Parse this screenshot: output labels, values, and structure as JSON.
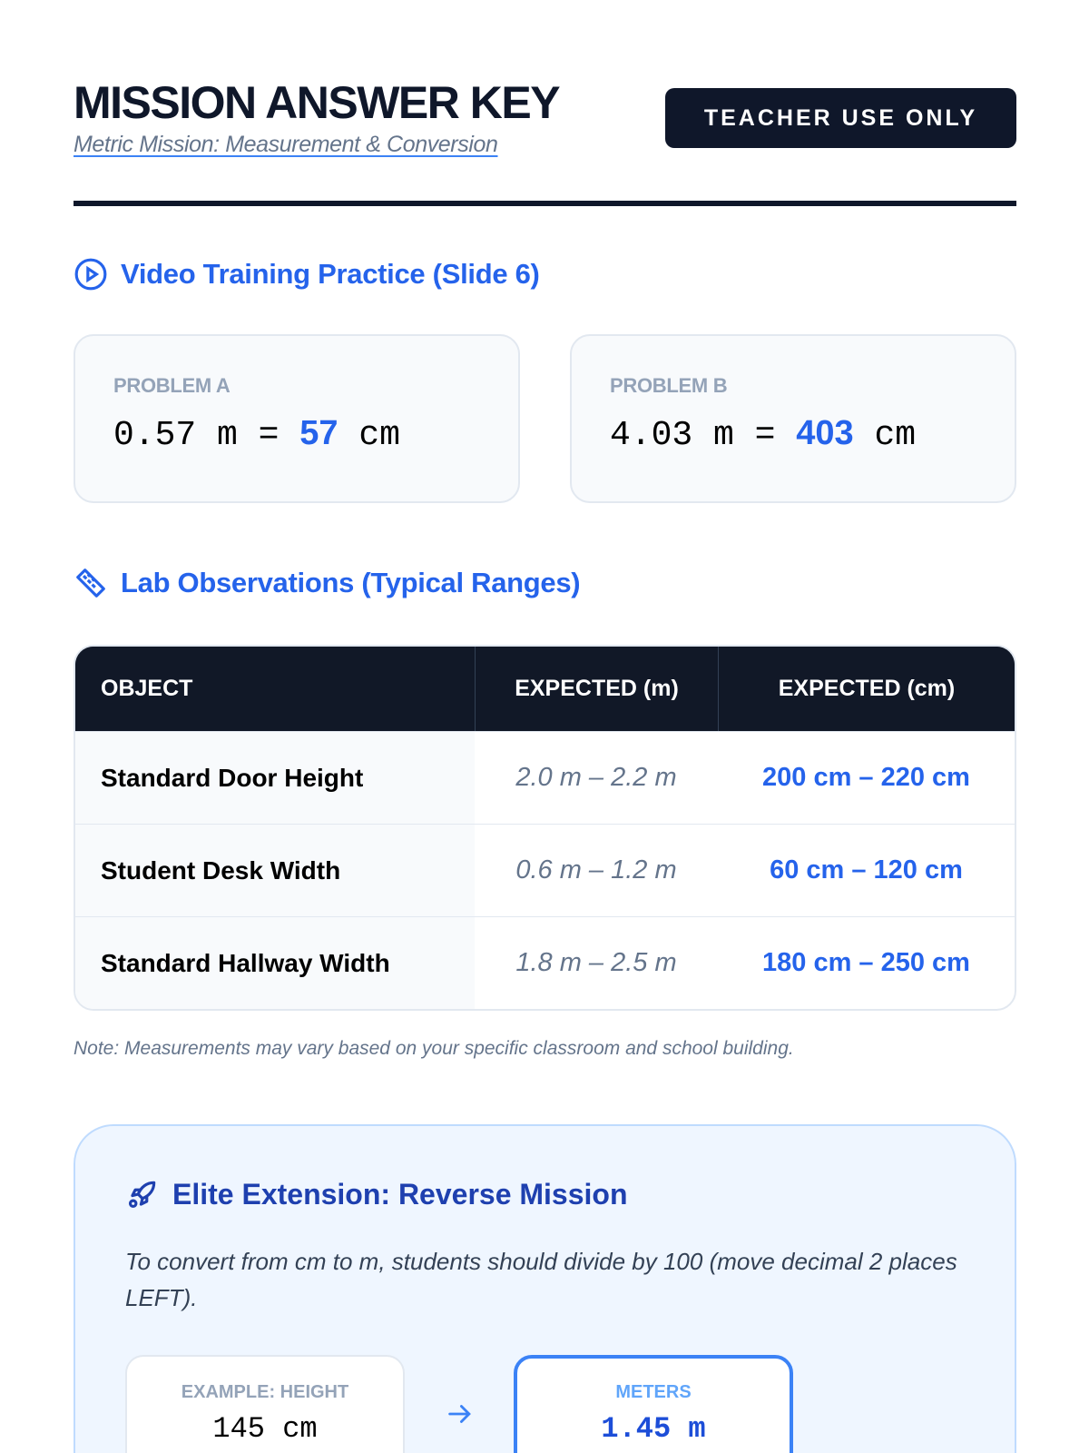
{
  "header": {
    "title": "MISSION ANSWER KEY",
    "subtitle": "Metric Mission: Measurement & Conversion",
    "badge": "TEACHER USE ONLY"
  },
  "colors": {
    "accent": "#2563eb",
    "dark": "#0f172a",
    "extension_bg": "#eff6ff"
  },
  "video": {
    "heading": "Video Training Practice (Slide 6)",
    "icon": "play-circle-icon",
    "problems": [
      {
        "label": "PROBLEM A",
        "given": "0.57 m = ",
        "answer": "57",
        "unit": " cm"
      },
      {
        "label": "PROBLEM B",
        "given": "4.03 m = ",
        "answer": "403",
        "unit": " cm"
      }
    ]
  },
  "lab": {
    "heading": "Lab Observations (Typical Ranges)",
    "icon": "ruler-icon",
    "columns": [
      "OBJECT",
      "EXPECTED (m)",
      "EXPECTED (cm)"
    ],
    "rows": [
      [
        "Standard Door Height",
        "2.0 m – 2.2 m",
        "200 cm – 220 cm"
      ],
      [
        "Student Desk Width",
        "0.6 m – 1.2 m",
        "60 cm – 120 cm"
      ],
      [
        "Standard Hallway Width",
        "1.8 m – 2.5 m",
        "180 cm – 250 cm"
      ]
    ],
    "note": "Note: Measurements may vary based on your specific classroom and school building."
  },
  "extension": {
    "heading": "Elite Extension: Reverse Mission",
    "icon": "rocket-icon",
    "text": "To convert from cm to m, students should divide by 100 (move decimal 2 places LEFT).",
    "example": {
      "label": "EXAMPLE: HEIGHT",
      "value": "145 cm"
    },
    "result": {
      "label": "METERS",
      "value": "1.45 m"
    }
  }
}
